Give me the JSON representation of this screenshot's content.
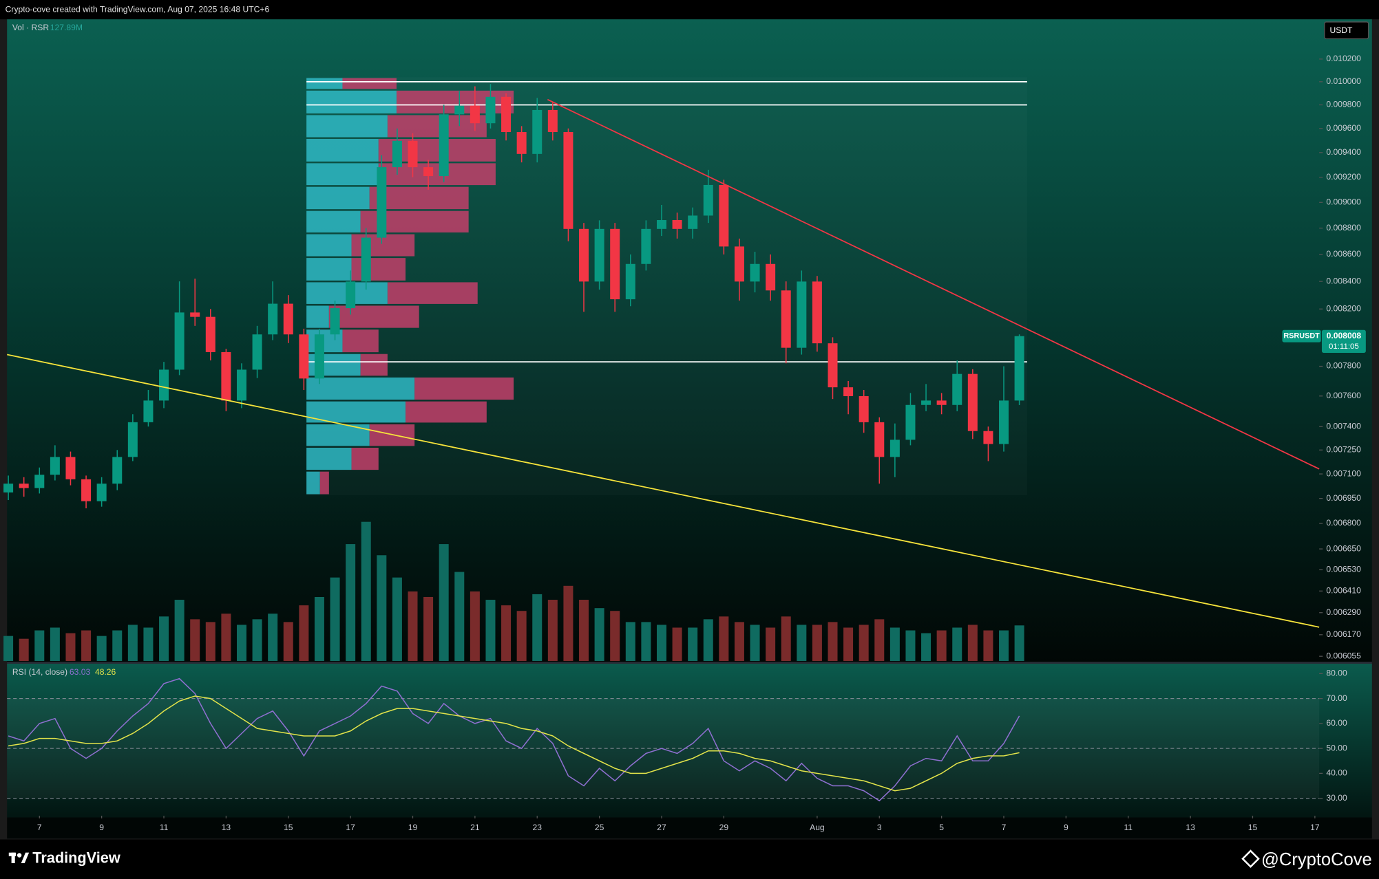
{
  "header": "Crypto-cove created with TradingView.com, Aug 07, 2025 16:48 UTC+6",
  "footer": {
    "logo": "TradingView",
    "handle": "@CryptoCove"
  },
  "chart_data": [
    {
      "type": "candlestick",
      "symbol": "RSRUSDT",
      "currency": "USDT",
      "log_scale": true,
      "grid": false,
      "up_color": "#089981",
      "down_color": "#f23645",
      "x": [
        "2025-07-06T00:00",
        "2025-07-06T12:00",
        "2025-07-07T00:00",
        "2025-07-07T12:00",
        "2025-07-08T00:00",
        "2025-07-08T12:00",
        "2025-07-09T00:00",
        "2025-07-09T12:00",
        "2025-07-10T00:00",
        "2025-07-10T12:00",
        "2025-07-11T00:00",
        "2025-07-11T12:00",
        "2025-07-12T00:00",
        "2025-07-12T12:00",
        "2025-07-13T00:00",
        "2025-07-13T12:00",
        "2025-07-14T00:00",
        "2025-07-14T12:00",
        "2025-07-15T00:00",
        "2025-07-15T12:00",
        "2025-07-16T00:00",
        "2025-07-16T12:00",
        "2025-07-17T00:00",
        "2025-07-17T12:00",
        "2025-07-18T00:00",
        "2025-07-18T12:00",
        "2025-07-19T00:00",
        "2025-07-19T12:00",
        "2025-07-20T00:00",
        "2025-07-20T12:00",
        "2025-07-21T00:00",
        "2025-07-21T12:00",
        "2025-07-22T00:00",
        "2025-07-22T12:00",
        "2025-07-23T00:00",
        "2025-07-23T12:00",
        "2025-07-24T00:00",
        "2025-07-24T12:00",
        "2025-07-25T00:00",
        "2025-07-25T12:00",
        "2025-07-26T00:00",
        "2025-07-26T12:00",
        "2025-07-27T00:00",
        "2025-07-27T12:00",
        "2025-07-28T00:00",
        "2025-07-28T12:00",
        "2025-07-29T00:00",
        "2025-07-29T12:00",
        "2025-07-30T00:00",
        "2025-07-30T12:00",
        "2025-07-31T00:00",
        "2025-07-31T12:00",
        "2025-08-01T00:00",
        "2025-08-01T12:00",
        "2025-08-02T00:00",
        "2025-08-02T12:00",
        "2025-08-03T00:00",
        "2025-08-03T12:00",
        "2025-08-04T00:00",
        "2025-08-04T12:00",
        "2025-08-05T00:00",
        "2025-08-05T12:00",
        "2025-08-06T00:00",
        "2025-08-06T12:00",
        "2025-08-07T00:00",
        "2025-08-07T12:00"
      ],
      "open": [
        0.006986,
        0.00704,
        0.007013,
        0.007095,
        0.007206,
        0.007067,
        0.006933,
        0.00704,
        0.007206,
        0.007428,
        0.00757,
        0.007777,
        0.008175,
        0.008144,
        0.007897,
        0.00757,
        0.007777,
        0.00802,
        0.008238,
        0.00802,
        0.007717,
        0.00802,
        0.008206,
        0.008399,
        0.008727,
        0.009281,
        0.009497,
        0.009281,
        0.009209,
        0.009719,
        0.009793,
        0.009644,
        0.009869,
        0.00957,
        0.009389,
        0.009756,
        0.00957,
        0.008794,
        0.008399,
        0.008794,
        0.00827,
        0.008529,
        0.008794,
        0.008862,
        0.008794,
        0.008897,
        0.009138,
        0.00866,
        0.008399,
        0.008529,
        0.008334,
        0.007927,
        0.008399,
        0.007958,
        0.007658,
        0.007599,
        0.007428,
        0.007206,
        0.007315,
        0.007541,
        0.00757,
        0.007541,
        0.007748,
        0.007371,
        0.007288,
        0.00757
      ],
      "high": [
        0.00709,
        0.00708,
        0.00714,
        0.00728,
        0.00724,
        0.00709,
        0.00708,
        0.00725,
        0.00748,
        0.00764,
        0.00783,
        0.0084,
        0.00842,
        0.0082,
        0.00792,
        0.00782,
        0.00808,
        0.0084,
        0.0083,
        0.00806,
        0.00806,
        0.00826,
        0.00848,
        0.0088,
        0.00938,
        0.0096,
        0.00956,
        0.00934,
        0.0098,
        0.00992,
        0.00996,
        0.00998,
        0.0099,
        0.00962,
        0.00986,
        0.00982,
        0.0096,
        0.00884,
        0.00886,
        0.00884,
        0.0086,
        0.00886,
        0.00898,
        0.00892,
        0.00896,
        0.00926,
        0.00918,
        0.00872,
        0.00862,
        0.0086,
        0.0084,
        0.00848,
        0.00844,
        0.008,
        0.0077,
        0.00764,
        0.00746,
        0.00742,
        0.00762,
        0.00768,
        0.00762,
        0.00784,
        0.00778,
        0.0074,
        0.0078,
        0.00802
      ],
      "low": [
        0.00694,
        0.00696,
        0.00698,
        0.00706,
        0.00703,
        0.00689,
        0.0069,
        0.007,
        0.00718,
        0.0074,
        0.00752,
        0.00774,
        0.00808,
        0.00784,
        0.0075,
        0.00752,
        0.00772,
        0.00798,
        0.00796,
        0.00764,
        0.00768,
        0.00798,
        0.00816,
        0.00834,
        0.00868,
        0.00922,
        0.0092,
        0.0091,
        0.00916,
        0.00962,
        0.00958,
        0.0096,
        0.0095,
        0.00932,
        0.00932,
        0.0095,
        0.0087,
        0.00818,
        0.00834,
        0.00818,
        0.00822,
        0.00848,
        0.00874,
        0.00872,
        0.00872,
        0.00884,
        0.0086,
        0.00826,
        0.00832,
        0.00826,
        0.00782,
        0.00788,
        0.0079,
        0.00758,
        0.00748,
        0.00736,
        0.00704,
        0.00708,
        0.00728,
        0.0075,
        0.00748,
        0.0075,
        0.00732,
        0.00718,
        0.00724,
        0.00754
      ],
      "close": [
        0.00704,
        0.007013,
        0.007095,
        0.007206,
        0.007067,
        0.006933,
        0.00704,
        0.007206,
        0.007428,
        0.00757,
        0.007777,
        0.008175,
        0.008144,
        0.007897,
        0.00757,
        0.007777,
        0.00802,
        0.008238,
        0.00802,
        0.007717,
        0.00802,
        0.008206,
        0.008399,
        0.008727,
        0.009281,
        0.009497,
        0.009281,
        0.009209,
        0.009719,
        0.009793,
        0.009644,
        0.009869,
        0.00957,
        0.009389,
        0.009756,
        0.00957,
        0.008794,
        0.008399,
        0.008794,
        0.00827,
        0.008529,
        0.008794,
        0.008862,
        0.008794,
        0.008897,
        0.009138,
        0.00866,
        0.008399,
        0.008529,
        0.008334,
        0.007927,
        0.008399,
        0.007958,
        0.007658,
        0.007599,
        0.007428,
        0.007206,
        0.007315,
        0.007541,
        0.00757,
        0.007541,
        0.007748,
        0.007371,
        0.007288,
        0.00757,
        0.008008
      ],
      "xlim": [
        "2025-07-05T23:00",
        "2025-08-17T03:20"
      ],
      "xticks": [
        {
          "value": "2025-07-07",
          "label": "7"
        },
        {
          "value": "2025-07-09",
          "label": "9"
        },
        {
          "value": "2025-07-11",
          "label": "11"
        },
        {
          "value": "2025-07-13",
          "label": "13"
        },
        {
          "value": "2025-07-15",
          "label": "15"
        },
        {
          "value": "2025-07-17",
          "label": "17"
        },
        {
          "value": "2025-07-19",
          "label": "19"
        },
        {
          "value": "2025-07-21",
          "label": "21"
        },
        {
          "value": "2025-07-23",
          "label": "23"
        },
        {
          "value": "2025-07-25",
          "label": "25"
        },
        {
          "value": "2025-07-27",
          "label": "27"
        },
        {
          "value": "2025-07-29",
          "label": "29"
        },
        {
          "value": "2025-08-01",
          "label": "Aug"
        },
        {
          "value": "2025-08-03",
          "label": "3"
        },
        {
          "value": "2025-08-05",
          "label": "5"
        },
        {
          "value": "2025-08-07",
          "label": "7"
        },
        {
          "value": "2025-08-09",
          "label": "9"
        },
        {
          "value": "2025-08-11",
          "label": "11"
        },
        {
          "value": "2025-08-13",
          "label": "13"
        },
        {
          "value": "2025-08-15",
          "label": "15"
        },
        {
          "value": "2025-08-17",
          "label": "17"
        }
      ],
      "ylim": [
        0.00603,
        0.01056
      ],
      "yticks": [
        {
          "value": 0.0102,
          "label": "0.010200"
        },
        {
          "value": 0.01,
          "label": "0.010000"
        },
        {
          "value": 0.0098,
          "label": "0.009800"
        },
        {
          "value": 0.0096,
          "label": "0.009600"
        },
        {
          "value": 0.0094,
          "label": "0.009400"
        },
        {
          "value": 0.0092,
          "label": "0.009200"
        },
        {
          "value": 0.009,
          "label": "0.009000"
        },
        {
          "value": 0.0088,
          "label": "0.008800"
        },
        {
          "value": 0.0086,
          "label": "0.008600"
        },
        {
          "value": 0.0084,
          "label": "0.008400"
        },
        {
          "value": 0.0082,
          "label": "0.008200"
        },
        {
          "value": 0.0078,
          "label": "0.007800"
        },
        {
          "value": 0.0076,
          "label": "0.007600"
        },
        {
          "value": 0.0074,
          "label": "0.007400"
        },
        {
          "value": 0.00725,
          "label": "0.007250"
        },
        {
          "value": 0.0071,
          "label": "0.007100"
        },
        {
          "value": 0.00695,
          "label": "0.006950"
        },
        {
          "value": 0.0068,
          "label": "0.006800"
        },
        {
          "value": 0.00665,
          "label": "0.006650"
        },
        {
          "value": 0.00653,
          "label": "0.006530"
        },
        {
          "value": 0.00641,
          "label": "0.006410"
        },
        {
          "value": 0.00629,
          "label": "0.006290"
        },
        {
          "value": 0.00617,
          "label": "0.006170"
        },
        {
          "value": 0.006055,
          "label": "0.006055"
        }
      ],
      "last_price": 0.008008,
      "countdown": "01:11:05",
      "volume": {
        "name": "Vol · RSR",
        "last_label": "127.89M",
        "up_color": "#0f6b60",
        "down_color": "#7a2b2b",
        "vlim": [
          0,
          600
        ],
        "values": [
          90,
          80,
          110,
          120,
          100,
          110,
          90,
          110,
          130,
          120,
          160,
          220,
          150,
          140,
          170,
          130,
          150,
          170,
          140,
          200,
          230,
          300,
          420,
          500,
          380,
          300,
          250,
          230,
          420,
          320,
          250,
          220,
          200,
          180,
          240,
          220,
          270,
          220,
          190,
          180,
          140,
          140,
          130,
          120,
          120,
          150,
          160,
          140,
          130,
          120,
          160,
          130,
          130,
          140,
          120,
          130,
          150,
          120,
          110,
          100,
          110,
          120,
          130,
          110,
          110,
          127.89
        ]
      },
      "profile": {
        "from": "2025-07-15T14:00",
        "up_color": "#2fb8c4",
        "down_color": "#c2406a",
        "plim": [
          0,
          800
        ],
        "bins": [
          0.00697,
          0.00712,
          0.00727,
          0.00742,
          0.00757,
          0.00773,
          0.00789,
          0.00806,
          0.00823,
          0.0084,
          0.00858,
          0.00876,
          0.00894,
          0.00913,
          0.00932,
          0.00952,
          0.00972,
          0.00993,
          0.01004
        ],
        "up": [
          15,
          50,
          70,
          110,
          120,
          60,
          40,
          25,
          90,
          50,
          50,
          60,
          70,
          80,
          80,
          90,
          100,
          40
        ],
        "down": [
          10,
          30,
          50,
          90,
          110,
          30,
          40,
          100,
          100,
          60,
          70,
          120,
          110,
          130,
          130,
          110,
          130,
          60
        ]
      },
      "hlines": [
        0.01,
        0.0098,
        0.00783
      ],
      "trendlines": [
        {
          "color": "#f23645",
          "points": [
            [
              "2025-07-23T08:00",
              0.009846
            ],
            [
              "2025-08-17T03:20",
              0.007131
            ]
          ]
        },
        {
          "color": "#f5e33b",
          "points": [
            [
              "2025-07-05T23:00",
              0.00788
            ],
            [
              "2025-08-17T03:20",
              0.006211
            ]
          ]
        }
      ]
    },
    {
      "type": "line",
      "title": "RSI (14, close)",
      "ylim": [
        23,
        84
      ],
      "yticks": [
        {
          "value": 80,
          "label": "80.00"
        },
        {
          "value": 70,
          "label": "70.00"
        },
        {
          "value": 60,
          "label": "60.00"
        },
        {
          "value": 50,
          "label": "50.00"
        },
        {
          "value": 40,
          "label": "40.00"
        },
        {
          "value": 30,
          "label": "30.00"
        }
      ],
      "levels": [
        70,
        50,
        30
      ],
      "series": [
        {
          "color": "#8e6fd0",
          "values": [
            55,
            53,
            60,
            62,
            50,
            46,
            50,
            57,
            63,
            68,
            76,
            78,
            72,
            60,
            50,
            56,
            62,
            65,
            57,
            47,
            57,
            60,
            63,
            68,
            75,
            73,
            64,
            60,
            68,
            63,
            60,
            62,
            53,
            50,
            58,
            52,
            39,
            35,
            42,
            37,
            43,
            48,
            50,
            48,
            52,
            58,
            45,
            41,
            45,
            42,
            37,
            44,
            38,
            35,
            35,
            33,
            29,
            35,
            43,
            46,
            45,
            55,
            45,
            45,
            52,
            63.03
          ]
        },
        {
          "color": "#e2e34a",
          "values": [
            51,
            52,
            54,
            54,
            53,
            52,
            52,
            53,
            56,
            60,
            65,
            69,
            71,
            70,
            66,
            62,
            58,
            57,
            56,
            55,
            55,
            55,
            57,
            61,
            64,
            66,
            66,
            65,
            64,
            63,
            62,
            61,
            60,
            58,
            57,
            55,
            51,
            48,
            45,
            42,
            40,
            40,
            42,
            44,
            46,
            49,
            49,
            48,
            46,
            45,
            43,
            41,
            40,
            39,
            38,
            37,
            35,
            33,
            34,
            37,
            40,
            44,
            46,
            47,
            47,
            48.26
          ]
        }
      ]
    }
  ]
}
